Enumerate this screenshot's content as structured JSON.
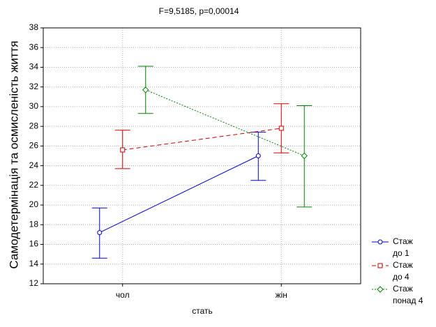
{
  "chart_data": {
    "type": "errorbar-line",
    "title": "F=9,5185, p=0,00014",
    "x_label": "стать",
    "y_label": "Самодетермінація та осмисленість життя",
    "categories": [
      "чол",
      "жін"
    ],
    "ylim": [
      12,
      38
    ],
    "yticks": [
      12,
      14,
      16,
      18,
      20,
      22,
      24,
      26,
      28,
      30,
      32,
      34,
      36,
      38
    ],
    "grid": true,
    "legend": "bottom-right",
    "series": [
      {
        "name": "Стаж\nдо 1",
        "color": "#0000c8",
        "line_style": "solid",
        "marker": "circle",
        "values": [
          17.2,
          25.0
        ],
        "lower": [
          14.6,
          22.5
        ],
        "upper": [
          19.7,
          27.4
        ]
      },
      {
        "name": "Стаж\nдо 4",
        "color": "#c80000",
        "line_style": "dashed",
        "marker": "square",
        "values": [
          25.6,
          27.8
        ],
        "lower": [
          23.7,
          25.3
        ],
        "upper": [
          27.6,
          30.3
        ]
      },
      {
        "name": "Стаж\nпонад 4",
        "color": "#008000",
        "line_style": "dotted",
        "marker": "diamond",
        "values": [
          31.7,
          25.0
        ],
        "lower": [
          29.3,
          19.8
        ],
        "upper": [
          34.1,
          30.1
        ]
      }
    ]
  }
}
